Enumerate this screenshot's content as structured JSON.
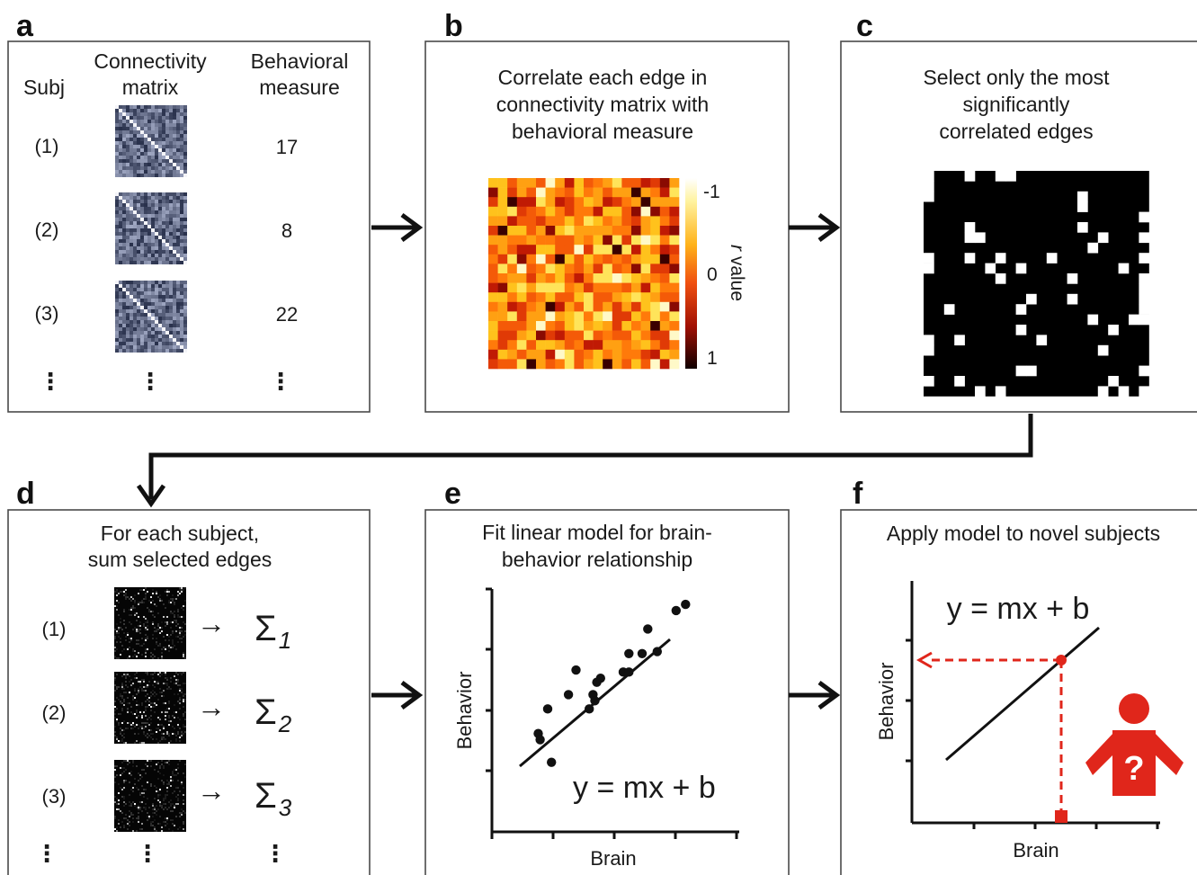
{
  "panels": {
    "a": {
      "letter": "a",
      "col_subj": "Subj",
      "col_matrix": [
        "Connectivity",
        "matrix"
      ],
      "col_behavior": [
        "Behavioral",
        "measure"
      ],
      "rows": [
        {
          "subj": "(1)",
          "value": "17"
        },
        {
          "subj": "(2)",
          "value": "8"
        },
        {
          "subj": "(3)",
          "value": "22"
        }
      ],
      "ellipsis": "⋮"
    },
    "b": {
      "letter": "b",
      "caption": [
        "Correlate each edge in",
        "connectivity matrix with",
        "behavioral measure"
      ],
      "colorbar": {
        "top": "-1",
        "mid": "0",
        "bottom": "1",
        "label_italic": "r",
        "label_rest": " value"
      }
    },
    "c": {
      "letter": "c",
      "caption": [
        "Select only the most",
        "significantly",
        "correlated edges"
      ]
    },
    "d": {
      "letter": "d",
      "caption": [
        "For each subject,",
        "sum selected edges"
      ],
      "rows": [
        {
          "subj": "(1)",
          "arrow": "→",
          "sigma": "Σ",
          "sub": "1"
        },
        {
          "subj": "(2)",
          "arrow": "→",
          "sigma": "Σ",
          "sub": "2"
        },
        {
          "subj": "(3)",
          "arrow": "→",
          "sigma": "Σ",
          "sub": "3"
        }
      ],
      "ellipsis": "⋮"
    },
    "e": {
      "letter": "e",
      "caption": [
        "Fit linear model for brain-",
        "behavior relationship"
      ],
      "equation": "y = mx + b",
      "xlabel": "Brain",
      "ylabel": "Behavior"
    },
    "f": {
      "letter": "f",
      "caption": "Apply model to novel subjects",
      "equation": "y = mx + b",
      "xlabel": "Brain",
      "ylabel": "Behavior",
      "question_mark": "?"
    }
  },
  "colors": {
    "accent_red": "#e0261b",
    "ink": "#111111"
  },
  "scatter_points": [
    [
      0.15,
      0.26
    ],
    [
      0.16,
      0.23
    ],
    [
      0.2,
      0.38
    ],
    [
      0.22,
      0.12
    ],
    [
      0.31,
      0.45
    ],
    [
      0.35,
      0.57
    ],
    [
      0.42,
      0.38
    ],
    [
      0.44,
      0.45
    ],
    [
      0.45,
      0.42
    ],
    [
      0.46,
      0.51
    ],
    [
      0.48,
      0.53
    ],
    [
      0.6,
      0.56
    ],
    [
      0.63,
      0.56
    ],
    [
      0.63,
      0.65
    ],
    [
      0.7,
      0.65
    ],
    [
      0.73,
      0.77
    ],
    [
      0.78,
      0.66
    ],
    [
      0.88,
      0.86
    ],
    [
      0.93,
      0.89
    ]
  ]
}
